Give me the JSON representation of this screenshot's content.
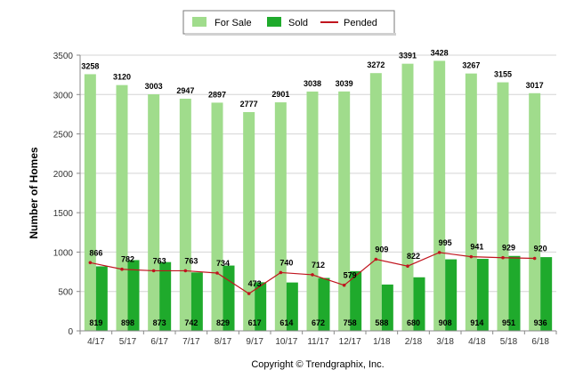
{
  "chart_data": {
    "type": "bar",
    "categories": [
      "4/17",
      "5/17",
      "6/17",
      "7/17",
      "8/17",
      "9/17",
      "10/17",
      "11/17",
      "12/17",
      "1/18",
      "2/18",
      "3/18",
      "4/18",
      "5/18",
      "6/18"
    ],
    "series": [
      {
        "name": "For Sale",
        "kind": "bar",
        "color": "#a0dc8c",
        "values": [
          3258,
          3120,
          3003,
          2947,
          2897,
          2777,
          2901,
          3038,
          3039,
          3272,
          3391,
          3428,
          3267,
          3155,
          3017
        ]
      },
      {
        "name": "Sold",
        "kind": "bar",
        "color": "#1faa2c",
        "values": [
          819,
          898,
          873,
          742,
          829,
          617,
          614,
          672,
          758,
          588,
          680,
          908,
          914,
          951,
          936
        ]
      },
      {
        "name": "Pended",
        "kind": "line",
        "color": "#c0141e",
        "values": [
          866,
          782,
          763,
          763,
          734,
          473,
          740,
          712,
          579,
          909,
          822,
          995,
          941,
          929,
          920
        ]
      }
    ],
    "ylabel": "Number of Homes",
    "xlabel": "",
    "ylim": [
      0,
      3500
    ],
    "yticks": [
      0,
      500,
      1000,
      1500,
      2000,
      2500,
      3000,
      3500
    ],
    "grid": true,
    "legend_position": "top-center"
  },
  "footer": {
    "copyright": "Copyright © Trendgraphix, Inc."
  }
}
